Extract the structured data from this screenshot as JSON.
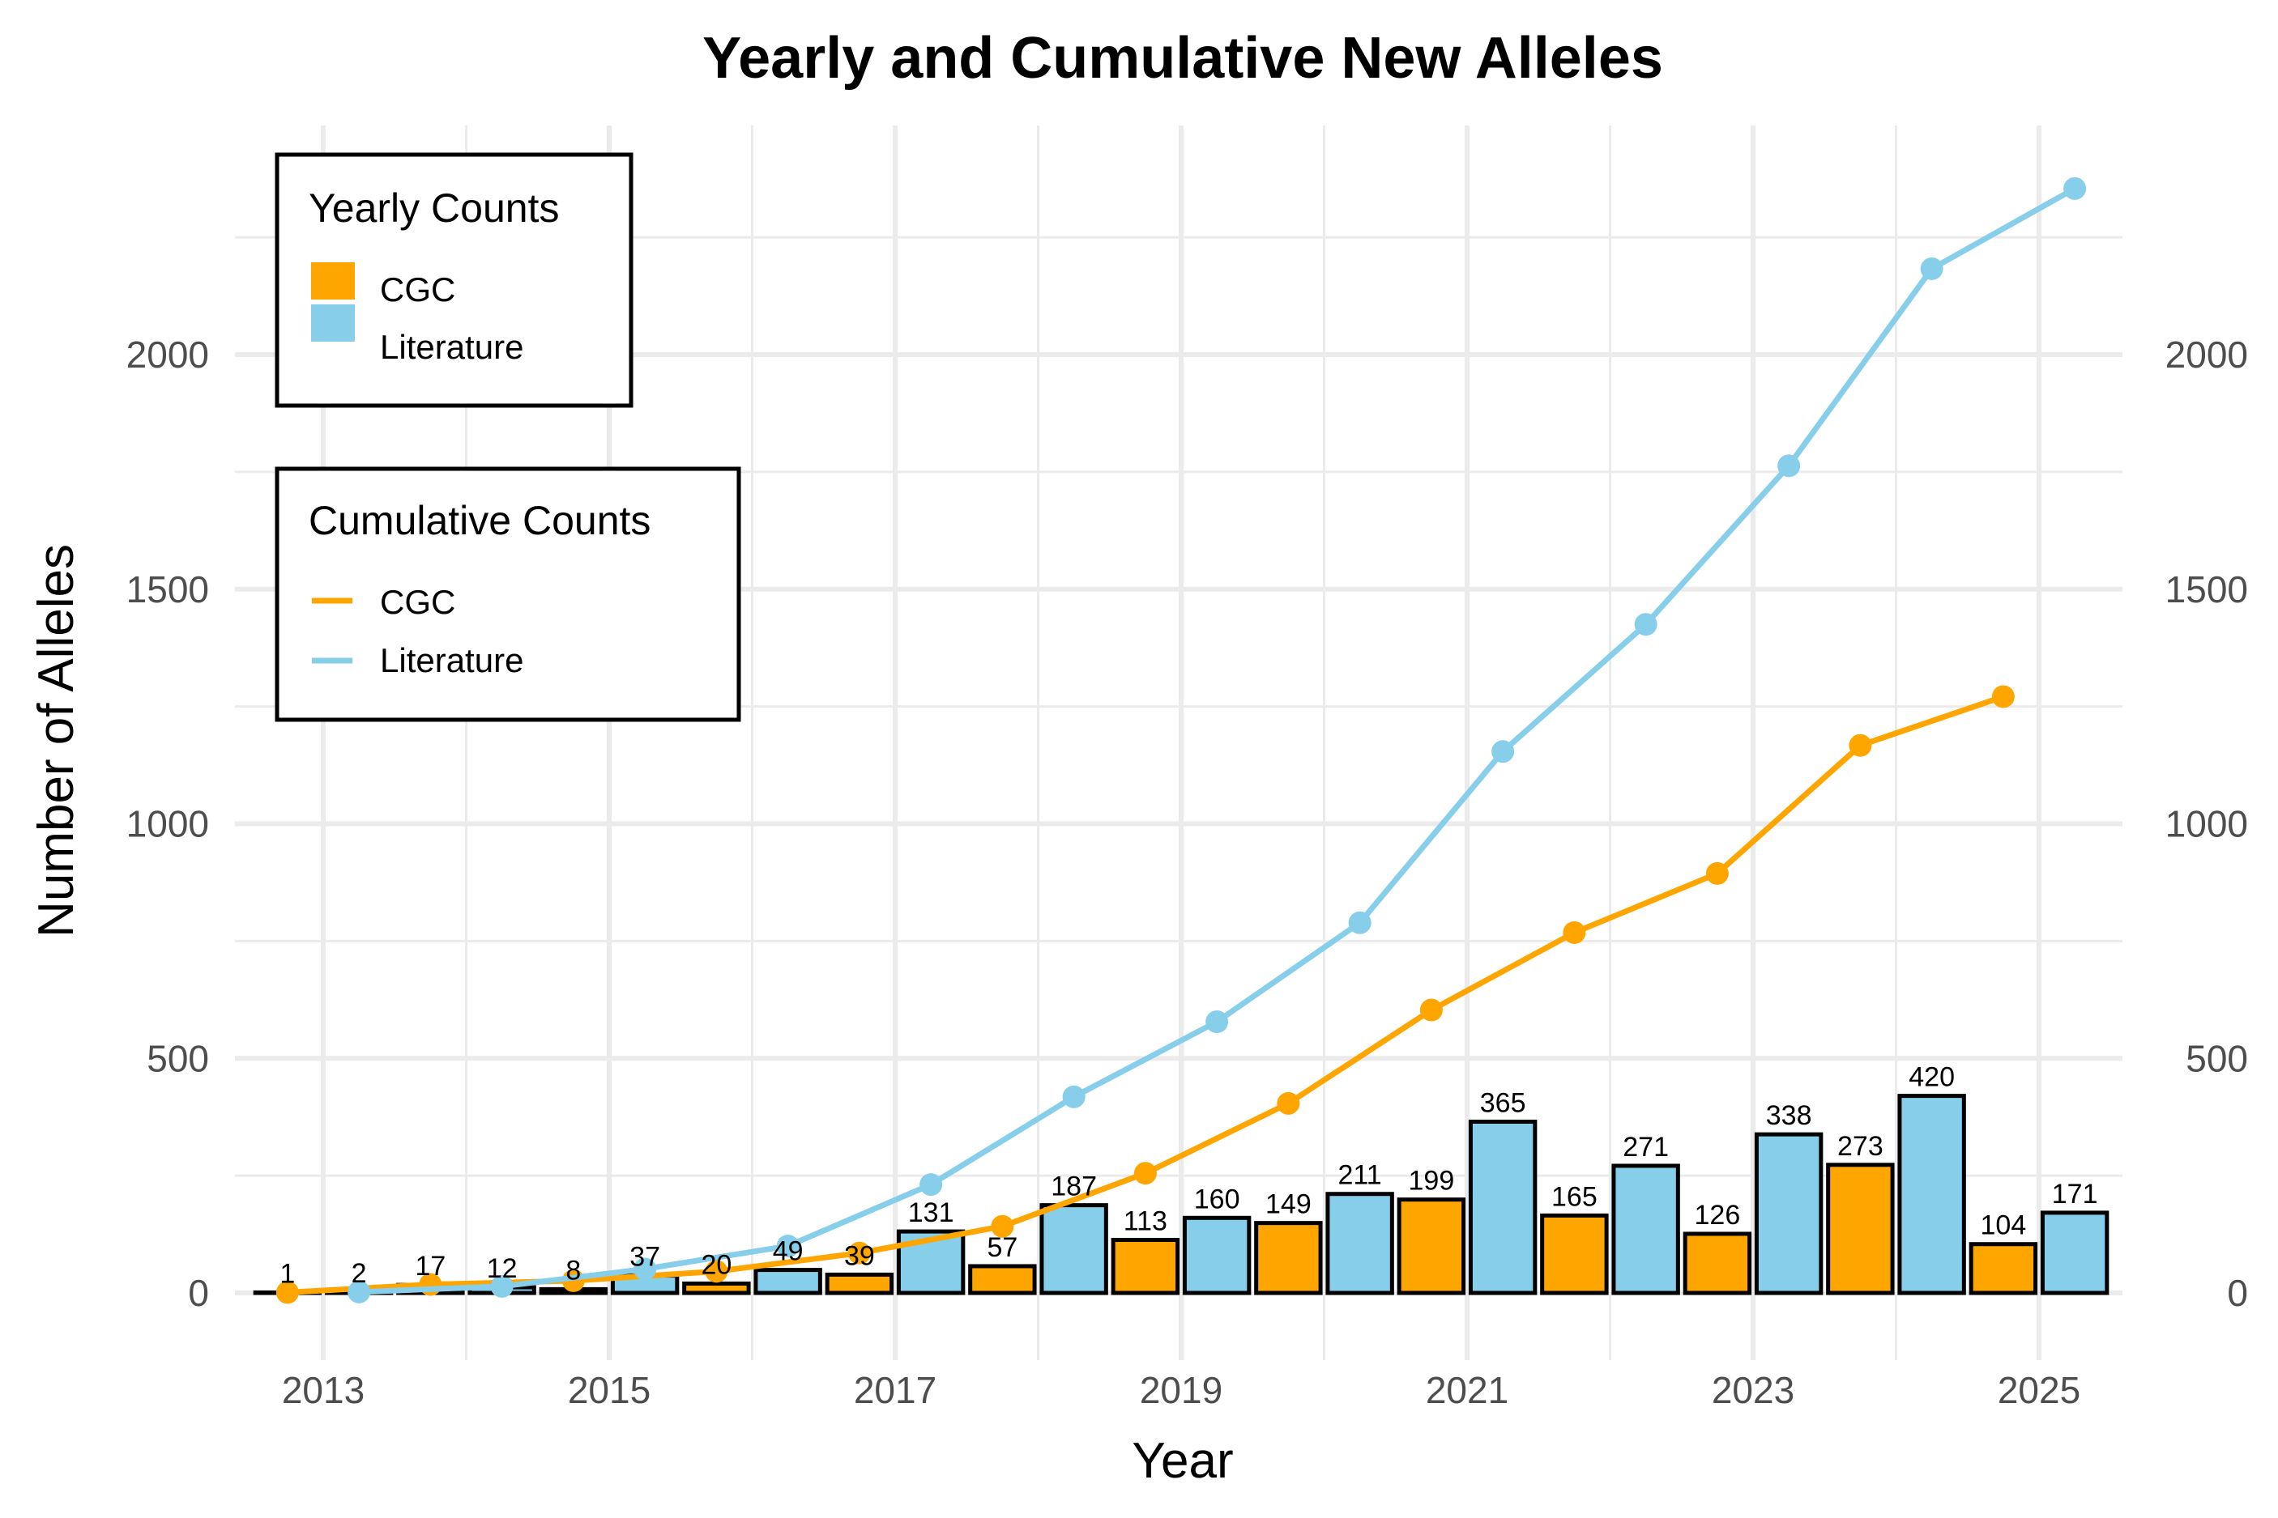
{
  "chart_data": {
    "type": "bar",
    "title": "Yearly and Cumulative New Alleles",
    "xlabel": "Year",
    "ylabel": "Number of Alleles",
    "x": [
      2013,
      2014,
      2015,
      2016,
      2017,
      2018,
      2019,
      2020,
      2021,
      2022,
      2023,
      2024,
      2025
    ],
    "x_ticks": [
      2013,
      2015,
      2017,
      2019,
      2021,
      2023,
      2025
    ],
    "x_tick_labels": [
      "2013",
      "2015",
      "2017",
      "2019",
      "2021",
      "2023",
      "2025"
    ],
    "xlim": [
      2012.3,
      2025.75
    ],
    "ylim": [
      -120,
      2500
    ],
    "y_ticks": [
      0,
      500,
      1000,
      1500,
      2000
    ],
    "y_tick_labels": [
      "0",
      "500",
      "1000",
      "1500",
      "2000"
    ],
    "secondary_y_axis": true,
    "grid": true,
    "bar_series": [
      {
        "name": "CGC",
        "color": "#FFA500",
        "values": [
          1,
          17,
          8,
          20,
          39,
          57,
          113,
          149,
          199,
          165,
          126,
          273,
          104
        ]
      },
      {
        "name": "Literature",
        "color": "#87CEEB",
        "values": [
          2,
          12,
          37,
          49,
          131,
          187,
          160,
          211,
          365,
          271,
          338,
          420,
          171
        ]
      }
    ],
    "line_series": [
      {
        "name": "CGC",
        "color": "#FFA500",
        "values": [
          1,
          18,
          26,
          46,
          85,
          142,
          255,
          404,
          603,
          768,
          894,
          1167,
          1271
        ]
      },
      {
        "name": "Literature",
        "color": "#87CEEB",
        "values": [
          2,
          14,
          51,
          100,
          231,
          418,
          578,
          789,
          1154,
          1425,
          1763,
          2183,
          2354
        ]
      }
    ],
    "legends": [
      {
        "title": "Yearly Counts",
        "kind": "fill",
        "placement": "top-left",
        "entries": [
          {
            "label": "CGC",
            "color": "#FFA500"
          },
          {
            "label": "Literature",
            "color": "#87CEEB"
          }
        ]
      },
      {
        "title": "Cumulative Counts",
        "kind": "line",
        "placement": "upper-left",
        "entries": [
          {
            "label": "CGC",
            "color": "#FFA500"
          },
          {
            "label": "Literature",
            "color": "#87CEEB"
          }
        ]
      }
    ]
  }
}
